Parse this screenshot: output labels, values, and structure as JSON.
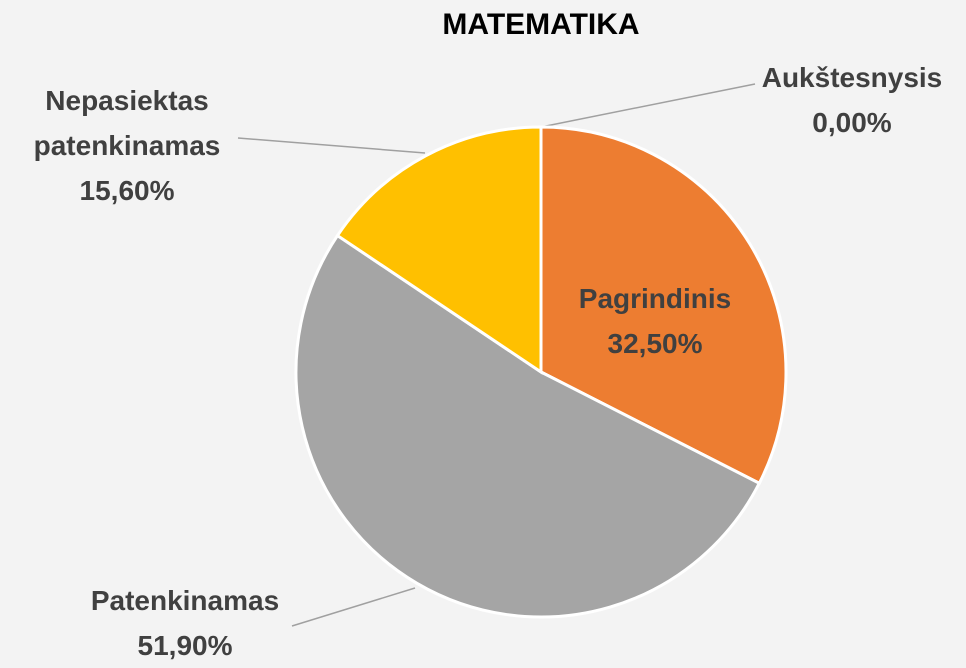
{
  "chart_data": {
    "type": "pie",
    "title": "MATEMATIKA",
    "categories": [
      "Aukštesnysis",
      "Pagrindinis",
      "Patenkinamas",
      "Nepasiektas patenkinamas"
    ],
    "values": [
      0,
      32.5,
      51.9,
      15.6
    ],
    "value_labels": [
      "0,00%",
      "32,50%",
      "51,90%",
      "15,60%"
    ],
    "colors": [
      "#4472c4",
      "#ed7d31",
      "#a5a5a5",
      "#ffc000"
    ]
  }
}
